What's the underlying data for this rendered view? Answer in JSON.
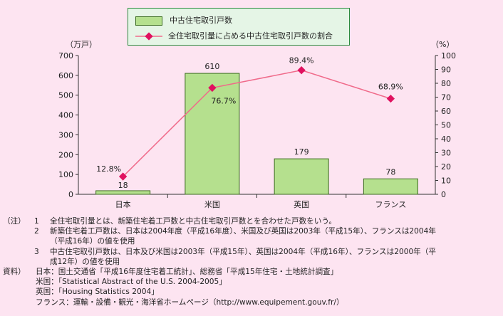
{
  "chart_data": {
    "type": "bar+line",
    "categories": [
      "日本",
      "米国",
      "英国",
      "フランス"
    ],
    "series": [
      {
        "name": "中古住宅取引戸数",
        "type": "bar",
        "axis": "left",
        "values": [
          18,
          610,
          179,
          78
        ],
        "labels": [
          "18",
          "610",
          "179",
          "78"
        ]
      },
      {
        "name": "全住宅取引量に占める中古住宅取引戸数の割合",
        "type": "line",
        "axis": "right",
        "values": [
          12.8,
          76.7,
          89.4,
          68.9
        ],
        "labels": [
          "12.8%",
          "76.7%",
          "89.4%",
          "68.9%"
        ]
      }
    ],
    "left_axis": {
      "unit": "（万戸）",
      "ylim": [
        0,
        700
      ],
      "ticks": [
        0,
        100,
        200,
        300,
        400,
        500,
        600,
        700
      ]
    },
    "right_axis": {
      "unit": "（%）",
      "ylim": [
        0,
        100
      ],
      "ticks": [
        0,
        10,
        20,
        30,
        40,
        50,
        60,
        70,
        80,
        90,
        100
      ]
    },
    "grid": false,
    "legend": "top-center"
  },
  "colors": {
    "background": "#fde4f1",
    "bar_fill": "#b5e08e",
    "bar_stroke": "#3b6b1e",
    "line": "#f06a8a",
    "marker": "#e0115f",
    "legend_bg": "#e5f5e6",
    "legend_border": "#2b8a3e"
  },
  "notes": {
    "label": "（注）",
    "items": [
      {
        "num": "1",
        "text": "全住宅取引量とは、新築住宅着工戸数と中古住宅取引戸数とを合わせた戸数をいう。"
      },
      {
        "num": "2",
        "text": "新築住宅着工戸数は、日本は2004年度（平成16年度）、米国及び英国は2003年（平成15年）、フランスは2004年",
        "cont": "（平成16年）の値を使用"
      },
      {
        "num": "3",
        "text": "中古住宅取引戸数は、日本及び米国は2003年（平成15年）、英国は2004年（平成16年）、フランスは2000年（平",
        "cont": "成12年）の値を使用"
      }
    ]
  },
  "sources": {
    "label": "資料）",
    "items": [
      "日本：国土交通省「平成16年度住宅着工統計」、総務省「平成15年住宅・土地統計調査」",
      "米国：「Statistical Abstract of the U.S. 2004-2005」",
      "英国：「Housing Statistics 2004」",
      "フランス：運輸・設備・観光・海洋省ホームページ（http://www.equipement.gouv.fr/）"
    ]
  }
}
